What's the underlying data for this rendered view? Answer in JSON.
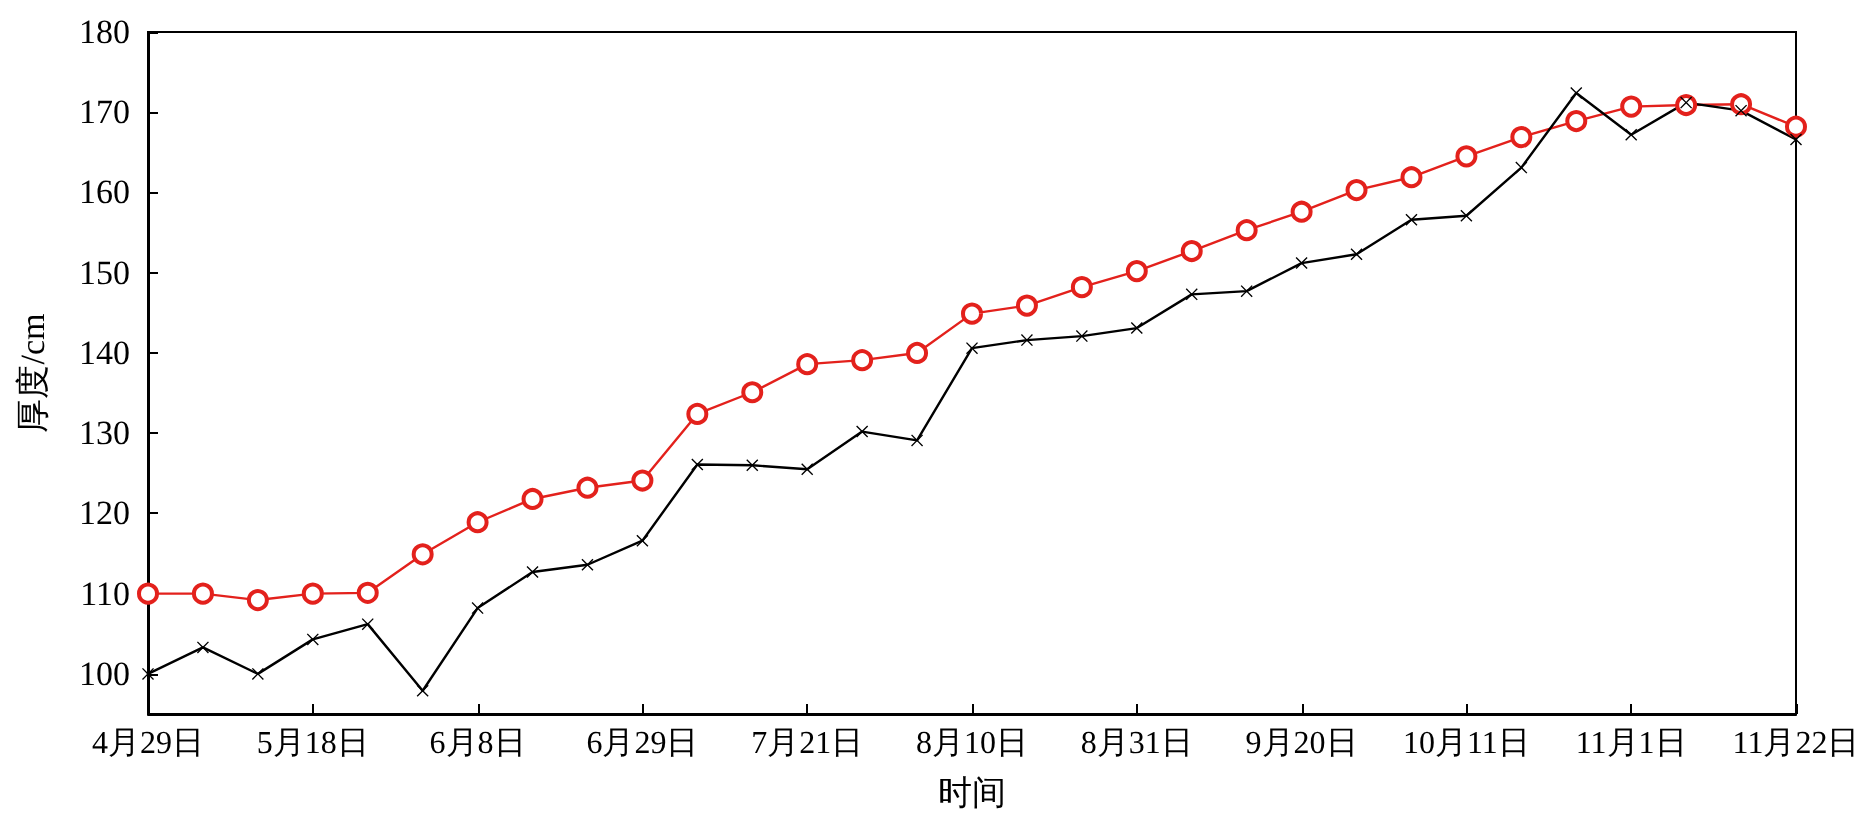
{
  "chart_data": {
    "type": "line",
    "xlabel": "时间",
    "ylabel": "厚度/cm",
    "categories": [
      "4月29日",
      null,
      null,
      "5月18日",
      null,
      null,
      "6月8日",
      null,
      null,
      "6月29日",
      null,
      null,
      "7月21日",
      null,
      null,
      "8月10日",
      null,
      null,
      "8月31日",
      null,
      null,
      "9月20日",
      null,
      null,
      "10月11日",
      null,
      null,
      "11月1日",
      null,
      null,
      "11月22日"
    ],
    "series": [
      {
        "color": "#e3211c",
        "marker": "circle",
        "values": [
          110,
          110,
          109.2,
          110,
          110.1,
          114.9,
          118.9,
          121.8,
          123.2,
          124.1,
          132.4,
          135.1,
          138.6,
          139.1,
          140,
          144.9,
          145.9,
          148.2,
          150.2,
          152.7,
          155.3,
          157.6,
          160.3,
          161.9,
          164.5,
          166.9,
          168.9,
          170.7,
          170.9,
          171,
          168.2
        ]
      },
      {
        "color": "#000000",
        "marker": "cross",
        "values": [
          100,
          103.3,
          100,
          104.3,
          106.2,
          97.9,
          108.2,
          112.7,
          113.6,
          116.6,
          126.1,
          126,
          125.5,
          130.2,
          129.1,
          140.6,
          141.6,
          142.1,
          143.1,
          147.3,
          147.7,
          151.2,
          152.3,
          156.6,
          157.1,
          163.1,
          172.4,
          167.2,
          171.2,
          170.2,
          166.6
        ]
      }
    ],
    "ylim": [
      95,
      180
    ],
    "yticks": [
      100,
      110,
      120,
      130,
      140,
      150,
      160,
      170,
      180
    ],
    "grid": false,
    "line_style": "solid"
  }
}
